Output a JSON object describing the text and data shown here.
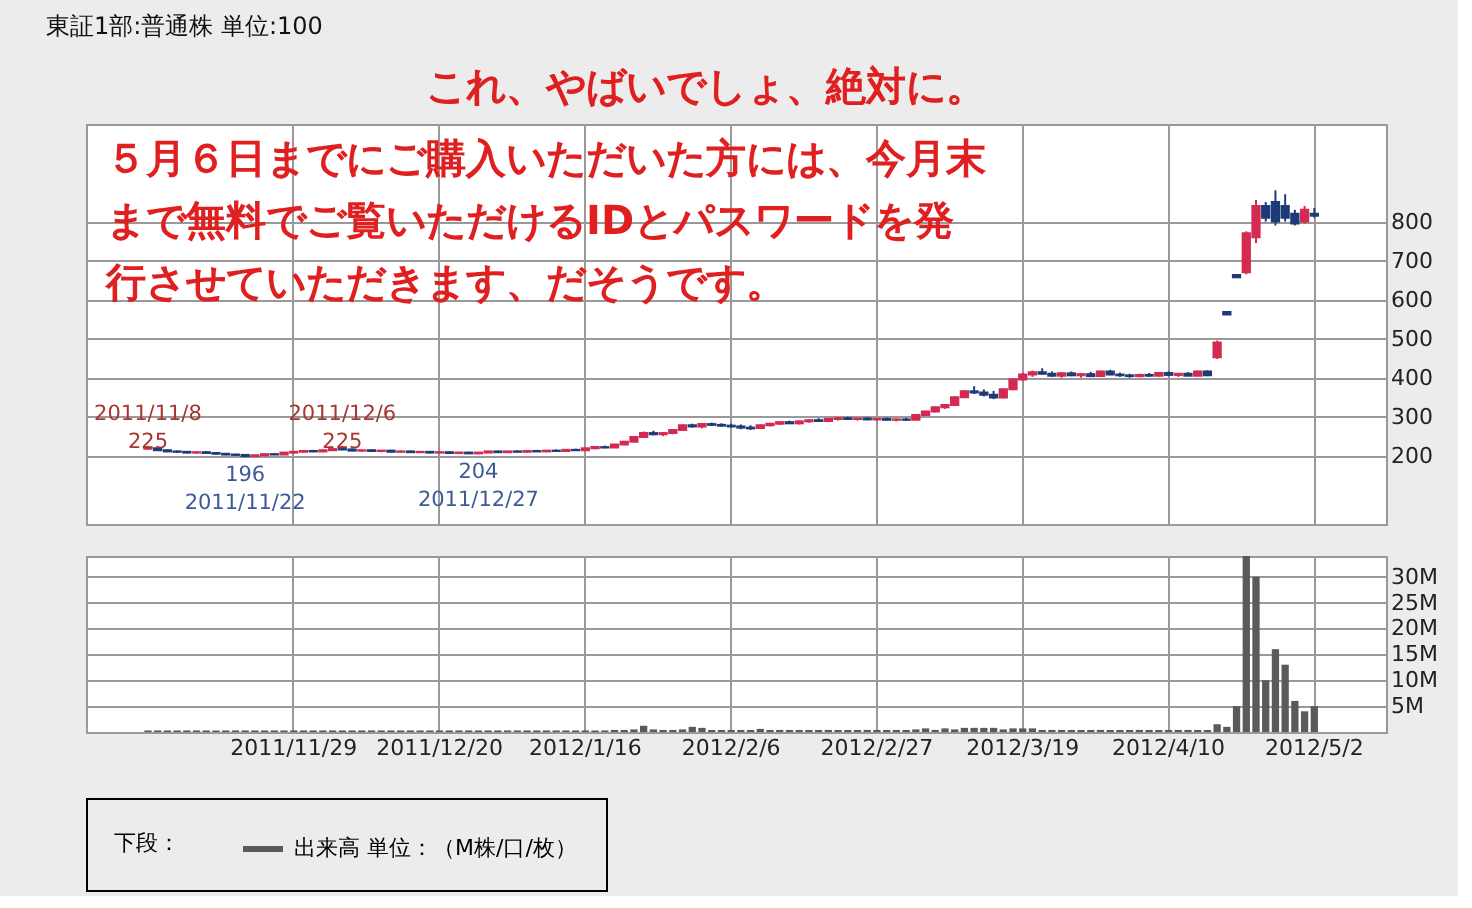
{
  "chart_data": [
    {
      "type": "candlestick",
      "title": "東証1部:普通株 単位:100",
      "categories": [
        null,
        null,
        null,
        null,
        null,
        null,
        null,
        null,
        null,
        null,
        null,
        null,
        null,
        null,
        null,
        "2011/11/29",
        null,
        null,
        null,
        null,
        null,
        null,
        null,
        null,
        null,
        null,
        null,
        null,
        null,
        null,
        "2011/12/20",
        null,
        null,
        null,
        null,
        null,
        null,
        null,
        null,
        null,
        null,
        null,
        null,
        null,
        null,
        "2012/1/16",
        null,
        null,
        null,
        null,
        null,
        null,
        null,
        null,
        null,
        null,
        null,
        null,
        null,
        null,
        "2012/2/6",
        null,
        null,
        null,
        null,
        null,
        null,
        null,
        null,
        null,
        null,
        null,
        null,
        null,
        null,
        "2012/2/27",
        null,
        null,
        null,
        null,
        null,
        null,
        null,
        null,
        null,
        null,
        null,
        null,
        null,
        null,
        "2012/3/19",
        null,
        null,
        null,
        null,
        null,
        null,
        null,
        null,
        null,
        null,
        null,
        null,
        null,
        null,
        "2012/4/10",
        null,
        null,
        null,
        null,
        null,
        null,
        null,
        null,
        null,
        null,
        null,
        null,
        null,
        null,
        "2012/5/2"
      ],
      "ohlc": [
        [
          218,
          225,
          215,
          220
        ],
        [
          219,
          221,
          212,
          214
        ],
        [
          214,
          216,
          209,
          211
        ],
        [
          211,
          213,
          207,
          210
        ],
        [
          210,
          212,
          206,
          208
        ],
        [
          208,
          211,
          205,
          209
        ],
        [
          209,
          212,
          206,
          207
        ],
        [
          207,
          209,
          203,
          205
        ],
        [
          205,
          207,
          201,
          203
        ],
        [
          203,
          205,
          199,
          202
        ],
        [
          202,
          204,
          196,
          199
        ],
        [
          199,
          203,
          197,
          201
        ],
        [
          201,
          205,
          199,
          204
        ],
        [
          204,
          207,
          202,
          203
        ],
        [
          203,
          209,
          202,
          208
        ],
        [
          208,
          212,
          206,
          210
        ],
        [
          210,
          214,
          208,
          212
        ],
        [
          212,
          215,
          209,
          211
        ],
        [
          211,
          216,
          209,
          214
        ],
        [
          214,
          219,
          212,
          217
        ],
        [
          217,
          225,
          214,
          216
        ],
        [
          216,
          219,
          212,
          213
        ],
        [
          213,
          216,
          210,
          214
        ],
        [
          214,
          217,
          211,
          212
        ],
        [
          212,
          215,
          209,
          213
        ],
        [
          213,
          215,
          209,
          210
        ],
        [
          210,
          213,
          208,
          211
        ],
        [
          211,
          213,
          207,
          209
        ],
        [
          209,
          212,
          207,
          210
        ],
        [
          210,
          212,
          206,
          208
        ],
        [
          208,
          211,
          206,
          209
        ],
        [
          209,
          211,
          206,
          207
        ],
        [
          207,
          210,
          206,
          208
        ],
        [
          208,
          210,
          205,
          206
        ],
        [
          206,
          209,
          204,
          208
        ],
        [
          208,
          212,
          207,
          211
        ],
        [
          211,
          213,
          208,
          209
        ],
        [
          209,
          212,
          207,
          211
        ],
        [
          211,
          214,
          209,
          210
        ],
        [
          210,
          213,
          208,
          212
        ],
        [
          212,
          215,
          210,
          211
        ],
        [
          211,
          214,
          209,
          213
        ],
        [
          213,
          216,
          211,
          212
        ],
        [
          212,
          216,
          210,
          215
        ],
        [
          215,
          218,
          213,
          214
        ],
        [
          214,
          220,
          213,
          219
        ],
        [
          219,
          224,
          217,
          222
        ],
        [
          222,
          226,
          219,
          221
        ],
        [
          221,
          230,
          220,
          229
        ],
        [
          229,
          238,
          227,
          236
        ],
        [
          236,
          250,
          235,
          248
        ],
        [
          248,
          262,
          246,
          258
        ],
        [
          258,
          264,
          252,
          255
        ],
        [
          255,
          260,
          250,
          258
        ],
        [
          258,
          268,
          255,
          266
        ],
        [
          266,
          280,
          264,
          278
        ],
        [
          278,
          282,
          272,
          275
        ],
        [
          275,
          284,
          270,
          281
        ],
        [
          281,
          285,
          276,
          279
        ],
        [
          279,
          283,
          274,
          277
        ],
        [
          277,
          282,
          272,
          275
        ],
        [
          275,
          280,
          268,
          272
        ],
        [
          272,
          278,
          266,
          270
        ],
        [
          271,
          280,
          269,
          278
        ],
        [
          278,
          284,
          275,
          282
        ],
        [
          282,
          288,
          279,
          286
        ],
        [
          286,
          290,
          281,
          283
        ],
        [
          283,
          290,
          280,
          288
        ],
        [
          288,
          293,
          285,
          291
        ],
        [
          291,
          296,
          287,
          289
        ],
        [
          289,
          296,
          286,
          294
        ],
        [
          294,
          299,
          290,
          296
        ],
        [
          296,
          300,
          292,
          294
        ],
        [
          294,
          298,
          290,
          295
        ],
        [
          295,
          299,
          291,
          293
        ],
        [
          293,
          297,
          289,
          294
        ],
        [
          294,
          298,
          290,
          292
        ],
        [
          292,
          296,
          288,
          293
        ],
        [
          293,
          297,
          289,
          292
        ],
        [
          292,
          305,
          291,
          304
        ],
        [
          304,
          315,
          302,
          313
        ],
        [
          313,
          326,
          311,
          324
        ],
        [
          324,
          332,
          320,
          330
        ],
        [
          330,
          352,
          328,
          350
        ],
        [
          350,
          368,
          348,
          365
        ],
        [
          365,
          378,
          358,
          362
        ],
        [
          362,
          370,
          352,
          356
        ],
        [
          356,
          366,
          345,
          349
        ],
        [
          349,
          372,
          347,
          370
        ],
        [
          370,
          398,
          368,
          395
        ],
        [
          395,
          412,
          392,
          408
        ],
        [
          408,
          418,
          402,
          414
        ],
        [
          414,
          424,
          408,
          410
        ],
        [
          410,
          416,
          402,
          405
        ],
        [
          405,
          414,
          400,
          411
        ],
        [
          411,
          416,
          404,
          406
        ],
        [
          406,
          412,
          400,
          409
        ],
        [
          409,
          415,
          403,
          404
        ],
        [
          404,
          418,
          402,
          416
        ],
        [
          416,
          420,
          406,
          408
        ],
        [
          408,
          413,
          402,
          406
        ],
        [
          406,
          410,
          400,
          404
        ],
        [
          404,
          410,
          401,
          407
        ],
        [
          407,
          412,
          402,
          405
        ],
        [
          405,
          414,
          403,
          412
        ],
        [
          412,
          416,
          404,
          407
        ],
        [
          407,
          412,
          402,
          410
        ],
        [
          410,
          414,
          404,
          405
        ],
        [
          405,
          418,
          404,
          416
        ],
        [
          416,
          419,
          404,
          406
        ],
        [
          452,
          495,
          448,
          490
        ],
        [
          568,
          568,
          562,
          562
        ],
        [
          663,
          663,
          657,
          657
        ],
        [
          670,
          775,
          665,
          770
        ],
        [
          760,
          855,
          745,
          840
        ],
        [
          840,
          850,
          800,
          810
        ],
        [
          850,
          880,
          790,
          800
        ],
        [
          840,
          870,
          800,
          810
        ],
        [
          820,
          830,
          790,
          795
        ],
        [
          800,
          840,
          795,
          830
        ],
        [
          820,
          835,
          810,
          815
        ]
      ],
      "colors": [
        "#d42a52",
        "#1e3a78",
        "#1e3a78",
        "#1e3a78",
        "#1e3a78",
        "#d42a52",
        "#1e3a78",
        "#1e3a78",
        "#1e3a78",
        "#1e3a78",
        "#1e3a78",
        "#d42a52",
        "#d42a52",
        "#1e3a78",
        "#d42a52",
        "#d42a52",
        "#d42a52",
        "#1e3a78",
        "#d42a52",
        "#d42a52",
        "#1e3a78",
        "#1e3a78",
        "#d42a52",
        "#1e3a78",
        "#d42a52",
        "#1e3a78",
        "#d42a52",
        "#1e3a78",
        "#d42a52",
        "#1e3a78",
        "#d42a52",
        "#1e3a78",
        "#d42a52",
        "#1e3a78",
        "#d42a52",
        "#d42a52",
        "#1e3a78",
        "#d42a52",
        "#1e3a78",
        "#d42a52",
        "#1e3a78",
        "#d42a52",
        "#1e3a78",
        "#d42a52",
        "#1e3a78",
        "#d42a52",
        "#d42a52",
        "#1e3a78",
        "#d42a52",
        "#d42a52",
        "#d42a52",
        "#d42a52",
        "#1e3a78",
        "#d42a52",
        "#d42a52",
        "#d42a52",
        "#1e3a78",
        "#d42a52",
        "#1e3a78",
        "#1e3a78",
        "#1e3a78",
        "#1e3a78",
        "#1e3a78",
        "#d42a52",
        "#d42a52",
        "#d42a52",
        "#1e3a78",
        "#d42a52",
        "#d42a52",
        "#1e3a78",
        "#d42a52",
        "#d42a52",
        "#1e3a78",
        "#d42a52",
        "#1e3a78",
        "#d42a52",
        "#1e3a78",
        "#d42a52",
        "#1e3a78",
        "#d42a52",
        "#d42a52",
        "#d42a52",
        "#d42a52",
        "#d42a52",
        "#d42a52",
        "#1e3a78",
        "#1e3a78",
        "#1e3a78",
        "#d42a52",
        "#d42a52",
        "#d42a52",
        "#d42a52",
        "#1e3a78",
        "#1e3a78",
        "#d42a52",
        "#1e3a78",
        "#d42a52",
        "#1e3a78",
        "#d42a52",
        "#1e3a78",
        "#1e3a78",
        "#1e3a78",
        "#d42a52",
        "#1e3a78",
        "#d42a52",
        "#1e3a78",
        "#d42a52",
        "#1e3a78",
        "#d42a52",
        "#1e3a78",
        "#d42a52",
        "#1e3a78",
        "#1e3a78",
        "#d42a52",
        "#d42a52",
        "#1e3a78",
        "#1e3a78",
        "#1e3a78",
        "#1e3a78",
        "#d42a52",
        "#1e3a78"
      ],
      "ylim": [
        25,
        1050
      ],
      "yticks": [
        200,
        300,
        400,
        500,
        600,
        700,
        800
      ],
      "grid": true,
      "tick_labels": "y",
      "annotations": [
        {
          "text": "2011/11/8\n225",
          "y": 225
        },
        {
          "text": "196\n2011/11/22",
          "y": 196
        },
        {
          "text": "2011/12/6\n225",
          "y": 225
        },
        {
          "text": "204\n2011/12/27",
          "y": 204
        },
        "これ、やばいでしょ、絶対に。",
        "５月６日までにご購入いただいた方には、今月末まで無料でご覧いただけるIDとパスワードを発行させていただきます、だそうです。"
      ]
    },
    {
      "type": "bar",
      "categories": [
        null,
        null,
        null,
        null,
        null,
        null,
        null,
        null,
        null,
        null,
        null,
        null,
        null,
        null,
        null,
        "2011/11/29",
        null,
        null,
        null,
        null,
        null,
        null,
        null,
        null,
        null,
        null,
        null,
        null,
        null,
        null,
        "2011/12/20",
        null,
        null,
        null,
        null,
        null,
        null,
        null,
        null,
        null,
        null,
        null,
        null,
        null,
        null,
        "2012/1/16",
        null,
        null,
        null,
        null,
        null,
        null,
        null,
        null,
        null,
        null,
        null,
        null,
        null,
        null,
        "2012/2/6",
        null,
        null,
        null,
        null,
        null,
        null,
        null,
        null,
        null,
        null,
        null,
        null,
        null,
        null,
        "2012/2/27",
        null,
        null,
        null,
        null,
        null,
        null,
        null,
        null,
        null,
        null,
        null,
        null,
        null,
        null,
        "2012/3/19",
        null,
        null,
        null,
        null,
        null,
        null,
        null,
        null,
        null,
        null,
        null,
        null,
        null,
        null,
        "2012/4/10",
        null,
        null,
        null,
        null,
        null,
        null,
        null,
        null,
        null,
        null,
        null,
        null,
        null,
        null,
        "2012/5/2"
      ],
      "series": [
        {
          "name": "出来高 単位：（M株/口/枚）",
          "color": "#5a5a5a",
          "values": [
            0.3,
            0.3,
            0.3,
            0.3,
            0.3,
            0.3,
            0.3,
            0.3,
            0.3,
            0.3,
            0.3,
            0.3,
            0.3,
            0.3,
            0.3,
            0.3,
            0.3,
            0.3,
            0.3,
            0.3,
            0.3,
            0.3,
            0.3,
            0.3,
            0.3,
            0.3,
            0.3,
            0.3,
            0.3,
            0.3,
            0.3,
            0.3,
            0.3,
            0.3,
            0.3,
            0.3,
            0.3,
            0.3,
            0.3,
            0.3,
            0.3,
            0.3,
            0.3,
            0.3,
            0.3,
            0.3,
            0.3,
            0.3,
            0.4,
            0.4,
            0.5,
            1.2,
            0.5,
            0.4,
            0.4,
            0.5,
            1.0,
            0.8,
            0.4,
            0.4,
            0.4,
            0.4,
            0.4,
            0.6,
            0.4,
            0.4,
            0.4,
            0.4,
            0.4,
            0.4,
            0.4,
            0.4,
            0.4,
            0.4,
            0.4,
            0.4,
            0.4,
            0.4,
            0.4,
            0.5,
            0.7,
            0.4,
            0.7,
            0.5,
            0.8,
            0.8,
            0.8,
            0.8,
            0.5,
            0.7,
            0.7,
            0.7,
            0.4,
            0.4,
            0.4,
            0.4,
            0.4,
            0.4,
            0.4,
            0.4,
            0.4,
            0.4,
            0.4,
            0.4,
            0.4,
            0.4,
            0.4,
            0.4,
            0.4,
            0.4,
            1.5,
            1.0,
            5,
            34,
            30,
            10,
            16,
            13,
            6,
            4,
            5
          ]
        }
      ],
      "ylim": [
        0,
        34
      ],
      "yticks": [
        {
          "value": 5,
          "label": "5M"
        },
        {
          "value": 10,
          "label": "10M"
        },
        {
          "value": 15,
          "label": "15M"
        },
        {
          "value": 20,
          "label": "20M"
        },
        {
          "value": 25,
          "label": "25M"
        },
        {
          "value": 30,
          "label": "30M"
        }
      ],
      "grid": true,
      "legend": "bottom",
      "legend_title": "下段："
    }
  ]
}
